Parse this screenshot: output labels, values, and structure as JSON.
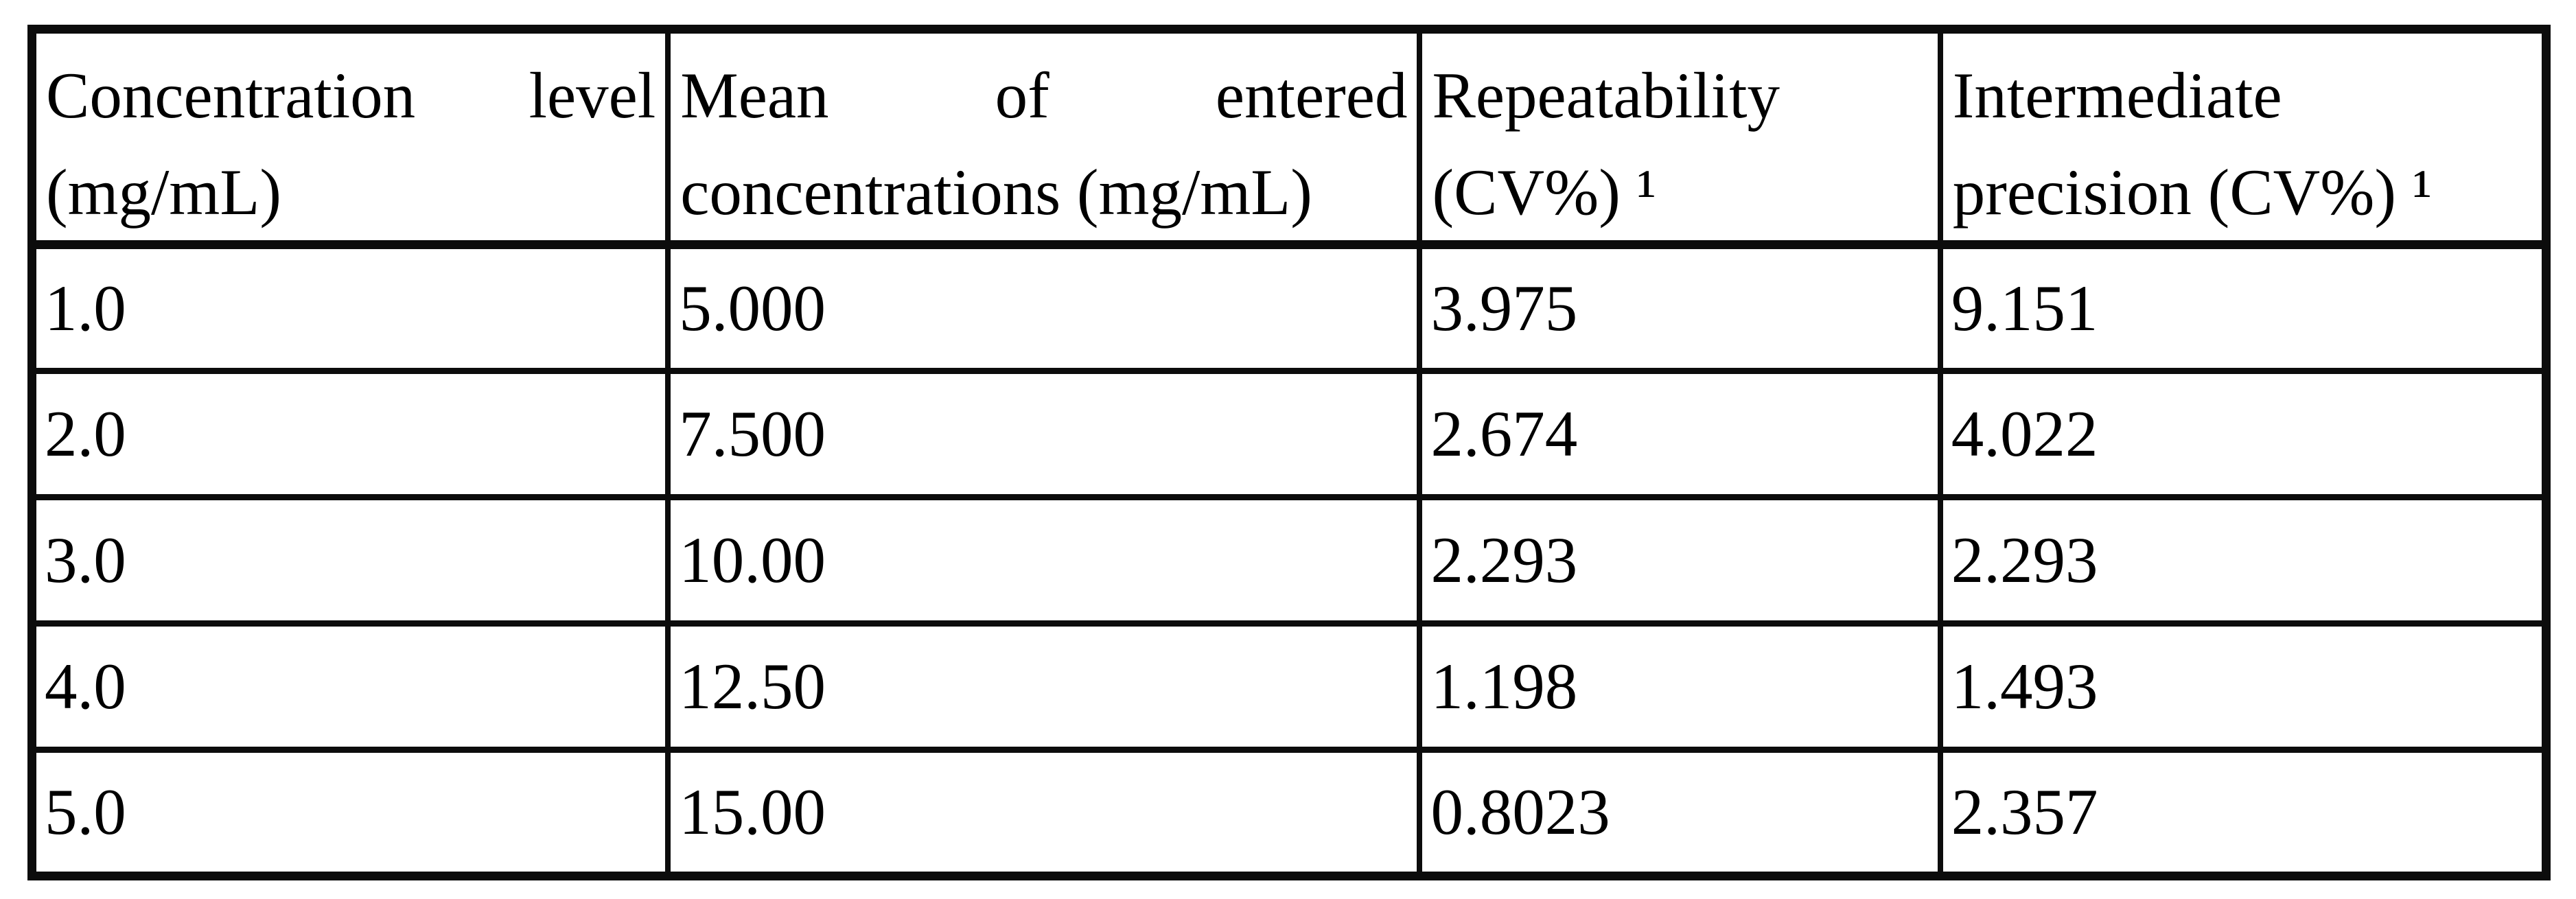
{
  "table": {
    "description": "Precision results table",
    "columns": [
      {
        "header": "Concentration level (mg/mL)"
      },
      {
        "header": "Mean of entered concentrations (mg/mL)"
      },
      {
        "header": "Repeatability (CV%) ¹"
      },
      {
        "header": "Intermediate precision (CV%) ¹"
      }
    ],
    "rows": [
      {
        "concentration_level": "1.0",
        "mean_entered": "5.000",
        "repeatability_cv": "3.975",
        "intermediate_precision_cv": "9.151"
      },
      {
        "concentration_level": "2.0",
        "mean_entered": "7.500",
        "repeatability_cv": "2.674",
        "intermediate_precision_cv": "4.022"
      },
      {
        "concentration_level": "3.0",
        "mean_entered": "10.00",
        "repeatability_cv": "2.293",
        "intermediate_precision_cv": "2.293"
      },
      {
        "concentration_level": "4.0",
        "mean_entered": "12.50",
        "repeatability_cv": "1.198",
        "intermediate_precision_cv": "1.493"
      },
      {
        "concentration_level": "5.0",
        "mean_entered": "15.00",
        "repeatability_cv": "0.8023",
        "intermediate_precision_cv": "2.357"
      }
    ],
    "footnote_marker": "1"
  },
  "colors": {
    "border": "#0c0c0c",
    "text": "#000000",
    "background": "#ffffff"
  }
}
